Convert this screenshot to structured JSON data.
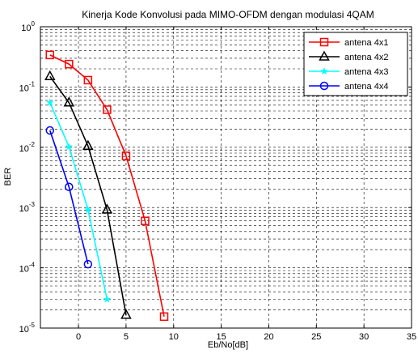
{
  "chart_data": {
    "type": "line",
    "title": "Kinerja Kode Konvolusi pada MIMO-OFDM dengan modulasi 4QAM",
    "xlabel": "Eb/No[dB]",
    "ylabel": "BER",
    "x_scale": "linear",
    "y_scale": "log",
    "xlim": [
      -4,
      35
    ],
    "ylim": [
      1e-05,
      1
    ],
    "x_ticks": [
      "0",
      "5",
      "10",
      "15",
      "20",
      "25",
      "30",
      "35"
    ],
    "y_ticks": [
      {
        "base": "10",
        "exp": "0"
      },
      {
        "base": "10",
        "exp": "-1"
      },
      {
        "base": "10",
        "exp": "-2"
      },
      {
        "base": "10",
        "exp": "-3"
      },
      {
        "base": "10",
        "exp": "-4"
      },
      {
        "base": "10",
        "exp": "-5"
      }
    ],
    "grid": true,
    "grid_style": "dashed",
    "legend_position": "top-right",
    "series": [
      {
        "name": "antena 4x1",
        "color": "#ff0000",
        "marker": "square",
        "x": [
          -3,
          -1,
          1,
          3,
          5,
          7,
          9
        ],
        "y": [
          0.34,
          0.24,
          0.13,
          0.042,
          0.0072,
          0.0006,
          1.55e-05
        ]
      },
      {
        "name": "antena 4x2",
        "color": "#000000",
        "marker": "triangle",
        "x": [
          -3,
          -1,
          1,
          3,
          5
        ],
        "y": [
          0.15,
          0.055,
          0.0105,
          0.00092,
          1.65e-05
        ]
      },
      {
        "name": "antena 4x3",
        "color": "#00ffff",
        "marker": "star",
        "x": [
          -3,
          -1,
          1,
          3
        ],
        "y": [
          0.055,
          0.0102,
          0.00092,
          3e-05
        ]
      },
      {
        "name": "antena 4x4",
        "color": "#0000ff",
        "marker": "circle",
        "x": [
          -3,
          -1,
          1
        ],
        "y": [
          0.019,
          0.0022,
          0.000115
        ]
      }
    ]
  }
}
